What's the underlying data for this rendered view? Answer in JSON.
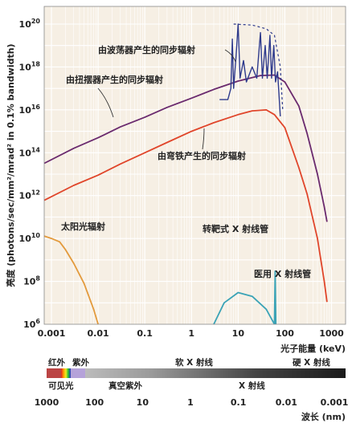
{
  "chart_data": {
    "type": "line",
    "title": "",
    "xlabel": "光子能量 (keV)",
    "ylabel": "亮度 (photons/sec/mm²/mrad² in 0.1% bandwidth)",
    "xscale": "log",
    "yscale": "log",
    "xlim": [
      0.0007,
      2000
    ],
    "ylim": [
      1000000.0,
      1e+20
    ],
    "x_ticks": [
      {
        "value": 0.001,
        "label": "0.001"
      },
      {
        "value": 0.01,
        "label": "0.01"
      },
      {
        "value": 0.1,
        "label": "0.1"
      },
      {
        "value": 1,
        "label": "1"
      },
      {
        "value": 10,
        "label": "10"
      },
      {
        "value": 100,
        "label": "100"
      },
      {
        "value": 1000,
        "label": "1000"
      }
    ],
    "y_ticks": [
      {
        "value": 1000000.0,
        "base": "10",
        "exp": "6"
      },
      {
        "value": 100000000.0,
        "base": "10",
        "exp": "8"
      },
      {
        "value": 10000000000.0,
        "base": "10",
        "exp": "10"
      },
      {
        "value": 1000000000000.0,
        "base": "10",
        "exp": "12"
      },
      {
        "value": 100000000000000.0,
        "base": "10",
        "exp": "14"
      },
      {
        "value": 1e+16,
        "base": "10",
        "exp": "16"
      },
      {
        "value": 1e+18,
        "base": "10",
        "exp": "18"
      },
      {
        "value": 1e+20,
        "base": "10",
        "exp": "20"
      }
    ],
    "grid": true,
    "series": [
      {
        "name": "由扭摆器产生的同步辐射",
        "color": "#6a2a6e",
        "points": [
          [
            0.0007,
            32000000000000.0
          ],
          [
            0.003,
            160000000000000.0
          ],
          [
            0.01,
            500000000000000.0
          ],
          [
            0.03,
            1600000000000000.0
          ],
          [
            0.1,
            4500000000000000.0
          ],
          [
            0.3,
            1.3e+16
          ],
          [
            1,
            3.5e+16
          ],
          [
            3,
            9e+16
          ],
          [
            10,
            2.2e+17
          ],
          [
            30,
            4e+17
          ],
          [
            60,
            4.2e+17
          ],
          [
            100,
            2e+17
          ],
          [
            200,
            1.5e+16
          ],
          [
            300,
            800000000000000.0
          ],
          [
            500,
            10000000000000.0
          ],
          [
            700,
            300000000000.0
          ],
          [
            800,
            60000000000.0
          ]
        ]
      },
      {
        "name": "由弯铁产生的同步辐射",
        "color": "#e0452a",
        "points": [
          [
            0.0007,
            600000000000.0
          ],
          [
            0.003,
            3000000000000.0
          ],
          [
            0.01,
            9000000000000.0
          ],
          [
            0.03,
            30000000000000.0
          ],
          [
            0.1,
            100000000000000.0
          ],
          [
            0.3,
            300000000000000.0
          ],
          [
            1,
            1000000000000000.0
          ],
          [
            3,
            2500000000000000.0
          ],
          [
            10,
            6000000000000000.0
          ],
          [
            20,
            9000000000000000.0
          ],
          [
            40,
            1e+16
          ],
          [
            60,
            6000000000000000.0
          ],
          [
            100,
            1500000000000000.0
          ],
          [
            200,
            20000000000000.0
          ],
          [
            300,
            1200000000000.0
          ],
          [
            500,
            10000000000.0
          ],
          [
            700,
            100000000.0
          ],
          [
            800,
            11000000.0
          ]
        ]
      },
      {
        "name": "由波荡器产生的同步辐射",
        "color": "#2e3a8c",
        "points": [
          [
            4,
            3e+16
          ],
          [
            6,
            3e+16
          ],
          [
            7,
            1e+17
          ],
          [
            7.5,
            2e+19
          ],
          [
            8,
            1e+17
          ],
          [
            9,
            3e+18
          ],
          [
            10,
            1e+20
          ],
          [
            11,
            3e+17
          ],
          [
            13,
            2e+18
          ],
          [
            15,
            2e+17
          ],
          [
            20,
            1e+18
          ],
          [
            25,
            3e+17
          ],
          [
            30,
            4e+19
          ],
          [
            33,
            3e+17
          ],
          [
            38,
            1e+19
          ],
          [
            42,
            3e+17
          ],
          [
            48,
            3e+19
          ],
          [
            52,
            3e+17
          ],
          [
            58,
            1e+19
          ],
          [
            63,
            2e+17
          ],
          [
            70,
            6e+17
          ],
          [
            80,
            5000000000000000.0
          ]
        ]
      },
      {
        "name": "太阳光辐射",
        "color": "#e39a3c",
        "points": [
          [
            0.0007,
            13000000000.0
          ],
          [
            0.001,
            10000000000.0
          ],
          [
            0.0015,
            7000000000.0
          ],
          [
            0.002,
            3000000000.0
          ],
          [
            0.003,
            700000000.0
          ],
          [
            0.005,
            80000000.0
          ],
          [
            0.008,
            5000000.0
          ],
          [
            0.01,
            1000000.0
          ]
        ]
      },
      {
        "name": "转靶式 X 射线管",
        "color": "#3aa3b6",
        "points": [
          [
            3,
            1000000.0
          ],
          [
            5,
            10000000.0
          ],
          [
            10,
            30000000.0
          ],
          [
            20,
            20000000.0
          ],
          [
            40,
            5000000.0
          ],
          [
            60,
            1000000.0
          ]
        ]
      },
      {
        "name": "医用 X 射线管",
        "color": "#3aa3b6",
        "points": [
          [
            60,
            1000000.0
          ],
          [
            62,
            300000000.0
          ],
          [
            64,
            1000000.0
          ]
        ]
      }
    ],
    "annotations": [
      {
        "text": "由波荡器产生的同步辐射"
      },
      {
        "text": "由扭摆器产生的同步辐射"
      },
      {
        "text": "由弯铁产生的同步辐射"
      },
      {
        "text": "太阳光辐射"
      },
      {
        "text": "转靶式 X 射线管"
      },
      {
        "text": "医用 X 射线管"
      }
    ],
    "spectrum_bar": {
      "labels": [
        {
          "text": "红外",
          "pos": "top"
        },
        {
          "text": "紫外",
          "pos": "top"
        },
        {
          "text": "软 X 射线",
          "pos": "top"
        },
        {
          "text": "硬 X 射线",
          "pos": "top"
        },
        {
          "text": "可见光",
          "pos": "bottom"
        },
        {
          "text": "真空紫外",
          "pos": "bottom"
        },
        {
          "text": "X 射线",
          "pos": "bottom"
        }
      ],
      "wavelength_ticks": [
        "1000",
        "100",
        "10",
        "1",
        "0.1",
        "0.01",
        "0.001"
      ],
      "wavelength_label": "波长 (nm)"
    }
  }
}
